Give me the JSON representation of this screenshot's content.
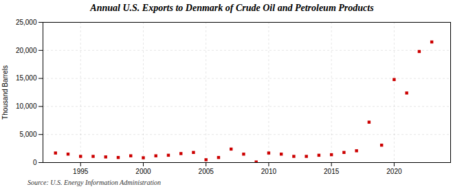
{
  "chart_data": {
    "type": "scatter",
    "title": "Annual U.S. Exports to Denmark of Crude Oil and Petroleum Products",
    "ylabel": "Thousand Barrels",
    "source": "Source: U.S. Energy Information Administration",
    "x": [
      1993,
      1994,
      1995,
      1996,
      1997,
      1998,
      1999,
      2000,
      2001,
      2002,
      2003,
      2004,
      2005,
      2006,
      2007,
      2008,
      2009,
      2010,
      2011,
      2012,
      2013,
      2014,
      2015,
      2016,
      2017,
      2018,
      2019,
      2020,
      2021,
      2022,
      2023
    ],
    "values": [
      1700,
      1500,
      1100,
      1100,
      1000,
      900,
      1200,
      850,
      1200,
      1300,
      1600,
      1800,
      500,
      900,
      2400,
      1500,
      100,
      1700,
      1500,
      1100,
      1100,
      1300,
      1400,
      1800,
      2100,
      7200,
      3100,
      14800,
      12400,
      19800,
      21500
    ],
    "color": "#cc0000",
    "marker": "square",
    "xlim": [
      1992.0,
      2024.5
    ],
    "xticks": [
      1995,
      2000,
      2005,
      2010,
      2015,
      2020
    ],
    "ylim": [
      0,
      25000
    ],
    "yticks": [
      0,
      {
        "value": 5000,
        "label": "5,000"
      },
      {
        "value": 10000,
        "label": "10,000"
      },
      {
        "value": 15000,
        "label": "15,000"
      },
      {
        "value": 20000,
        "label": "20,000"
      },
      {
        "value": 25000,
        "label": "25,000"
      }
    ],
    "grid": true
  }
}
